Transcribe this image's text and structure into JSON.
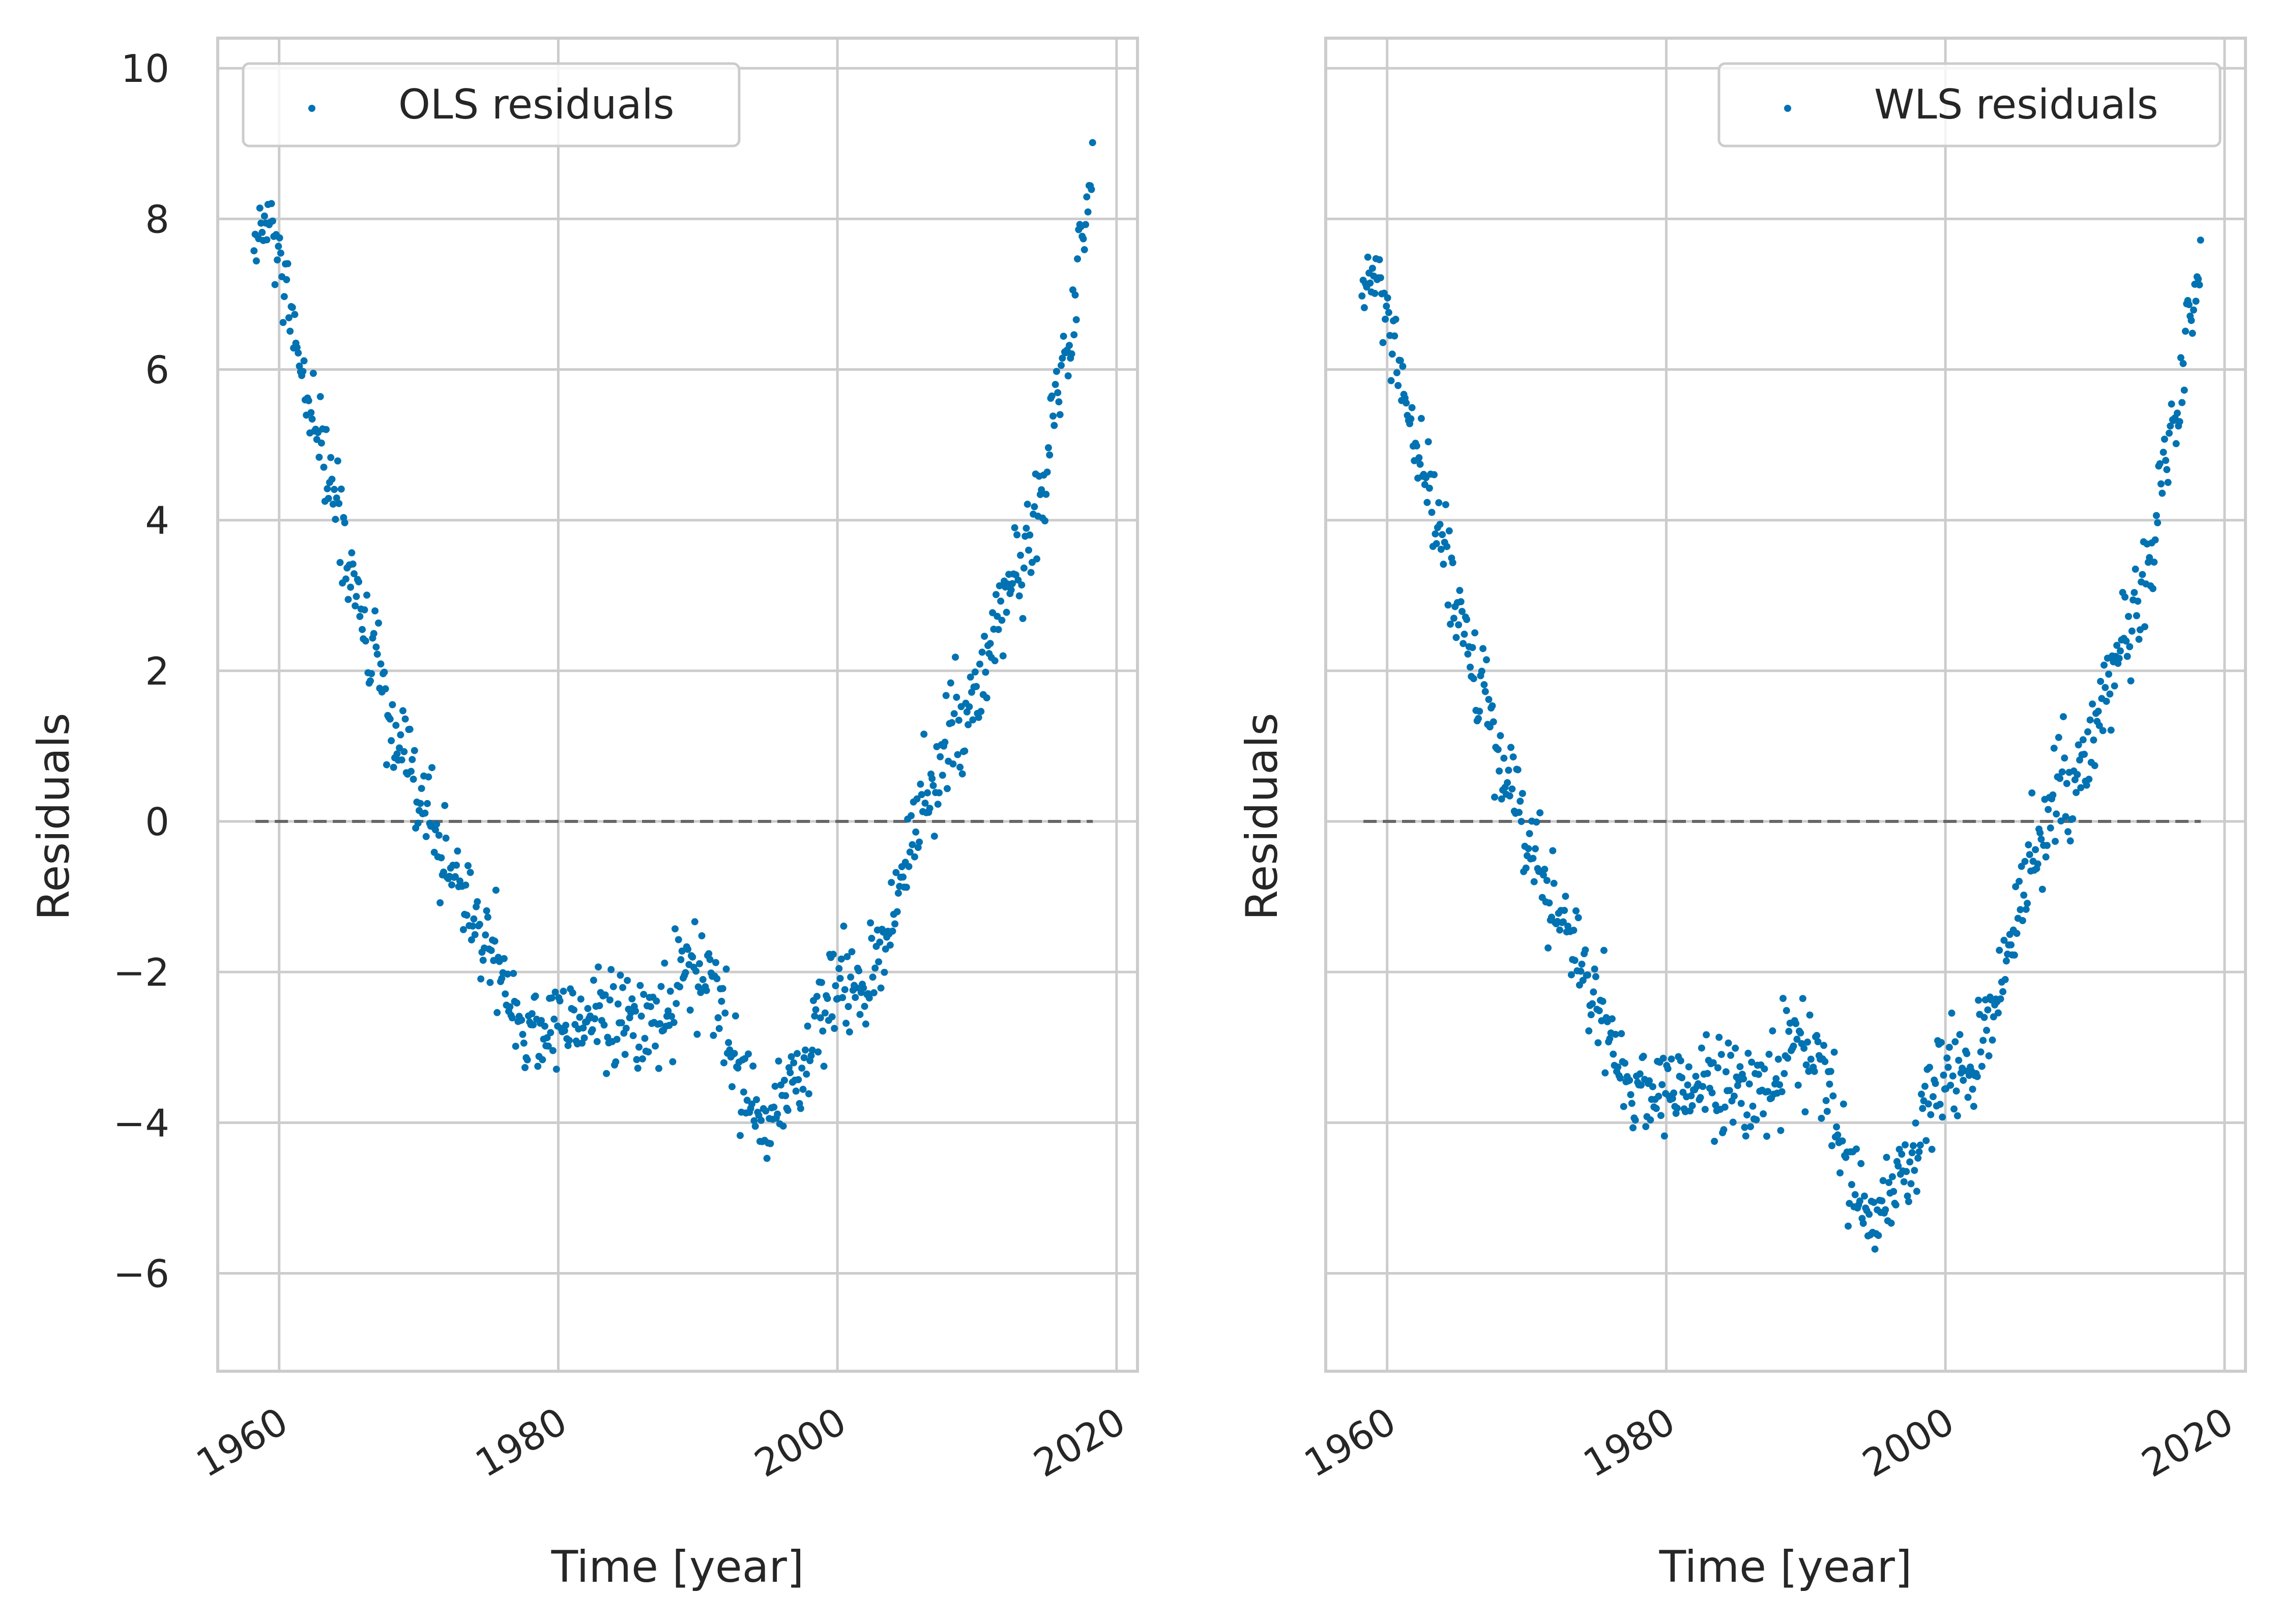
{
  "figure": {
    "background": "#ffffff",
    "grid_color": "#cccccc",
    "spine_color": "#cccccc",
    "text_color": "#262626",
    "marker_color": "#0072b2",
    "zero_line_color": "#555555"
  },
  "chart_data": [
    {
      "type": "scatter",
      "title": "",
      "xlabel": "Time [year]",
      "ylabel": "Residuals",
      "xlim": [
        1955.6,
        2021.5
      ],
      "ylim": [
        -7.3,
        10.4
      ],
      "xticks": [
        1960,
        1980,
        2000,
        2020
      ],
      "yticks": [
        -6,
        -4,
        -2,
        0,
        2,
        4,
        6,
        8,
        10
      ],
      "ytick_labels": [
        "−6",
        "−4",
        "−2",
        "0",
        "2",
        "4",
        "6",
        "8",
        "10"
      ],
      "grid": true,
      "legend": "top-left",
      "reference_line": {
        "y": 0,
        "x_from": 1958.3,
        "x_to": 2018.3,
        "style": "dashed"
      },
      "series": [
        {
          "name": "OLS residuals",
          "trend": [
            [
              1958.2,
              7.6
            ],
            [
              1959.0,
              7.9
            ],
            [
              1960.0,
              7.5
            ],
            [
              1961.0,
              6.3
            ],
            [
              1962.0,
              5.6
            ],
            [
              1963.0,
              5.0
            ],
            [
              1964.0,
              4.3
            ],
            [
              1965.0,
              3.4
            ],
            [
              1966.0,
              2.6
            ],
            [
              1967.0,
              2.0
            ],
            [
              1968.0,
              1.2
            ],
            [
              1969.0,
              0.7
            ],
            [
              1970.0,
              0.3
            ],
            [
              1971.0,
              -0.1
            ],
            [
              1972.0,
              -0.5
            ],
            [
              1973.0,
              -0.9
            ],
            [
              1974.0,
              -1.3
            ],
            [
              1975.0,
              -1.6
            ],
            [
              1976.0,
              -2.1
            ],
            [
              1977.0,
              -2.5
            ],
            [
              1978.0,
              -2.8
            ],
            [
              1979.0,
              -2.8
            ],
            [
              1980.0,
              -2.7
            ],
            [
              1982.0,
              -2.5
            ],
            [
              1984.0,
              -2.7
            ],
            [
              1986.0,
              -2.8
            ],
            [
              1988.0,
              -2.4
            ],
            [
              1989.5,
              -1.9
            ],
            [
              1991.0,
              -2.2
            ],
            [
              1992.0,
              -2.8
            ],
            [
              1993.0,
              -3.4
            ],
            [
              1994.0,
              -3.9
            ],
            [
              1995.0,
              -4.0
            ],
            [
              1996.0,
              -3.6
            ],
            [
              1997.0,
              -3.4
            ],
            [
              1998.0,
              -3.1
            ],
            [
              1999.0,
              -2.5
            ],
            [
              2000.0,
              -2.2
            ],
            [
              2001.0,
              -2.4
            ],
            [
              2002.0,
              -2.1
            ],
            [
              2003.0,
              -1.8
            ],
            [
              2004.0,
              -1.2
            ],
            [
              2005.0,
              -0.4
            ],
            [
              2006.0,
              0.2
            ],
            [
              2007.0,
              0.6
            ],
            [
              2008.0,
              1.0
            ],
            [
              2009.0,
              1.4
            ],
            [
              2010.0,
              1.7
            ],
            [
              2011.0,
              2.1
            ],
            [
              2012.0,
              2.9
            ],
            [
              2013.0,
              3.3
            ],
            [
              2014.0,
              4.0
            ],
            [
              2015.0,
              4.8
            ],
            [
              2016.0,
              5.9
            ],
            [
              2017.0,
              7.0
            ],
            [
              2018.0,
              8.4
            ],
            [
              2018.3,
              8.8
            ]
          ],
          "spread": 0.55
        }
      ]
    },
    {
      "type": "scatter",
      "title": "",
      "xlabel": "Time [year]",
      "ylabel": "Residuals",
      "xlim": [
        1955.6,
        2021.5
      ],
      "ylim": [
        -7.3,
        10.4
      ],
      "xticks": [
        1960,
        1980,
        2000,
        2020
      ],
      "yticks": [
        -6,
        -4,
        -2,
        0,
        2,
        4,
        6,
        8,
        10
      ],
      "grid": true,
      "legend": "top-right",
      "reference_line": {
        "y": 0,
        "x_from": 1958.3,
        "x_to": 2018.3,
        "style": "dashed"
      },
      "series": [
        {
          "name": "WLS residuals",
          "trend": [
            [
              1958.2,
              7.0
            ],
            [
              1959.0,
              7.2
            ],
            [
              1960.0,
              6.7
            ],
            [
              1961.0,
              5.6
            ],
            [
              1962.0,
              5.0
            ],
            [
              1963.0,
              4.4
            ],
            [
              1964.0,
              3.7
            ],
            [
              1965.0,
              2.9
            ],
            [
              1966.0,
              2.1
            ],
            [
              1967.0,
              1.5
            ],
            [
              1968.0,
              0.8
            ],
            [
              1969.0,
              0.2
            ],
            [
              1970.0,
              -0.3
            ],
            [
              1971.0,
              -0.7
            ],
            [
              1972.0,
              -1.1
            ],
            [
              1973.0,
              -1.5
            ],
            [
              1974.0,
              -1.9
            ],
            [
              1975.0,
              -2.4
            ],
            [
              1976.0,
              -2.9
            ],
            [
              1977.0,
              -3.3
            ],
            [
              1978.0,
              -3.6
            ],
            [
              1979.0,
              -3.6
            ],
            [
              1980.0,
              -3.6
            ],
            [
              1982.0,
              -3.4
            ],
            [
              1984.0,
              -3.6
            ],
            [
              1986.0,
              -3.7
            ],
            [
              1988.0,
              -3.3
            ],
            [
              1989.5,
              -2.9
            ],
            [
              1991.0,
              -3.3
            ],
            [
              1992.0,
              -3.9
            ],
            [
              1993.0,
              -4.6
            ],
            [
              1994.0,
              -5.2
            ],
            [
              1995.0,
              -5.2
            ],
            [
              1996.0,
              -4.9
            ],
            [
              1997.0,
              -4.6
            ],
            [
              1998.0,
              -4.4
            ],
            [
              1999.0,
              -3.6
            ],
            [
              2000.0,
              -3.4
            ],
            [
              2001.0,
              -3.5
            ],
            [
              2002.0,
              -3.2
            ],
            [
              2003.0,
              -2.7
            ],
            [
              2004.0,
              -2.1
            ],
            [
              2005.0,
              -1.3
            ],
            [
              2006.0,
              -0.6
            ],
            [
              2007.0,
              -0.1
            ],
            [
              2008.0,
              0.3
            ],
            [
              2009.0,
              0.5
            ],
            [
              2010.0,
              0.8
            ],
            [
              2011.0,
              1.2
            ],
            [
              2012.0,
              1.9
            ],
            [
              2013.0,
              2.5
            ],
            [
              2014.0,
              3.1
            ],
            [
              2015.0,
              3.9
            ],
            [
              2016.0,
              5.0
            ],
            [
              2017.0,
              6.1
            ],
            [
              2018.0,
              7.2
            ],
            [
              2018.3,
              7.5
            ]
          ],
          "spread": 0.55
        }
      ]
    }
  ]
}
